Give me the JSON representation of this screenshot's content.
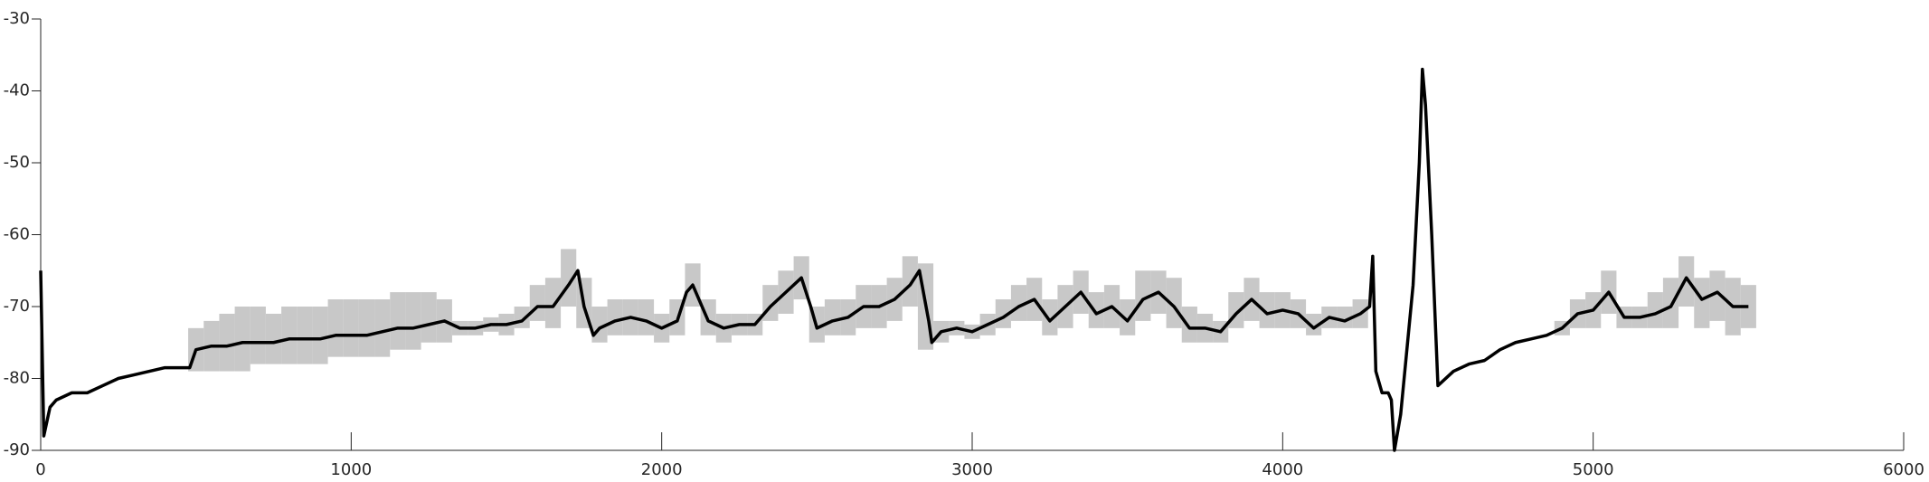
{
  "chart_data": {
    "type": "line",
    "x": [
      0,
      10,
      30,
      50,
      100,
      150,
      200,
      250,
      300,
      350,
      400,
      450,
      480,
      500,
      550,
      600,
      650,
      700,
      750,
      800,
      850,
      900,
      950,
      1000,
      1050,
      1100,
      1150,
      1200,
      1250,
      1300,
      1350,
      1400,
      1450,
      1500,
      1550,
      1600,
      1650,
      1700,
      1730,
      1750,
      1780,
      1800,
      1850,
      1900,
      1950,
      2000,
      2050,
      2080,
      2100,
      2150,
      2200,
      2250,
      2300,
      2350,
      2400,
      2450,
      2480,
      2500,
      2550,
      2600,
      2650,
      2700,
      2750,
      2800,
      2830,
      2860,
      2870,
      2900,
      2950,
      3000,
      3050,
      3100,
      3150,
      3200,
      3250,
      3300,
      3350,
      3400,
      3450,
      3500,
      3550,
      3600,
      3650,
      3700,
      3750,
      3800,
      3850,
      3900,
      3950,
      4000,
      4050,
      4100,
      4150,
      4200,
      4250,
      4280,
      4290,
      4300,
      4320,
      4340,
      4350,
      4360,
      4380,
      4400,
      4420,
      4440,
      4450,
      4460,
      4480,
      4500,
      4550,
      4600,
      4650,
      4700,
      4750,
      4800,
      4850,
      4900,
      4950,
      5000,
      5050,
      5100,
      5150,
      5200,
      5250,
      5300,
      5350,
      5400,
      5450,
      5500
    ],
    "series": [
      {
        "color": "#000000",
        "values": [
          -65,
          -88,
          -84,
          -83,
          -82,
          -82,
          -81,
          -80,
          -79.5,
          -79,
          -78.5,
          -78.5,
          -78.5,
          -76,
          -75.5,
          -75.5,
          -75,
          -75,
          -75,
          -74.5,
          -74.5,
          -74.5,
          -74,
          -74,
          -74,
          -73.5,
          -73,
          -73,
          -72.5,
          -72,
          -73,
          -73,
          -72.5,
          -72.5,
          -72,
          -70,
          -70,
          -67,
          -65,
          -70,
          -74,
          -73,
          -72,
          -71.5,
          -72,
          -73,
          -72,
          -68,
          -67,
          -72,
          -73,
          -72.5,
          -72.5,
          -70,
          -68,
          -66,
          -70,
          -73,
          -72,
          -71.5,
          -70,
          -70,
          -69,
          -67,
          -65,
          -72,
          -75,
          -73.5,
          -73,
          -73.5,
          -72.5,
          -71.5,
          -70,
          -69,
          -72,
          -70,
          -68,
          -71,
          -70,
          -72,
          -69,
          -68,
          -70,
          -73,
          -73,
          -73.5,
          -71,
          -69,
          -71,
          -70.5,
          -71,
          -73,
          -71.5,
          -72,
          -71,
          -70,
          -63,
          -79,
          -82,
          -82,
          -83,
          -90,
          -85,
          -76,
          -67,
          -50,
          -37,
          -42,
          -60,
          -81,
          -79,
          -78,
          -77.5,
          -76,
          -75,
          -74.5,
          -74,
          -73,
          -71,
          -70.5,
          -68,
          -71.5,
          -71.5,
          -71,
          -70,
          -66,
          -69,
          -68,
          -70,
          -70
        ]
      }
    ],
    "band": {
      "color": "#c8c8c8",
      "x": [
        500,
        550,
        600,
        650,
        700,
        750,
        800,
        850,
        900,
        950,
        1000,
        1050,
        1100,
        1150,
        1200,
        1250,
        1300,
        1350,
        1400,
        1450,
        1500,
        1550,
        1600,
        1650,
        1700,
        1750,
        1800,
        1850,
        1900,
        1950,
        2000,
        2050,
        2100,
        2150,
        2200,
        2250,
        2300,
        2350,
        2400,
        2450,
        2500,
        2550,
        2600,
        2650,
        2700,
        2750,
        2800,
        2850,
        2900,
        2950,
        3000,
        3050,
        3100,
        3150,
        3200,
        3250,
        3300,
        3350,
        3400,
        3450,
        3500,
        3550,
        3600,
        3650,
        3700,
        3750,
        3800,
        3850,
        3900,
        3950,
        4000,
        4050,
        4100,
        4150,
        4200,
        4250,
        4900,
        4950,
        5000,
        5050,
        5100,
        5150,
        5200,
        5250,
        5300,
        5350,
        5400,
        5450,
        5500
      ],
      "low": [
        -79,
        -79,
        -79,
        -79,
        -78,
        -78,
        -78,
        -78,
        -78,
        -77,
        -77,
        -77,
        -77,
        -76,
        -76,
        -75,
        -75,
        -74,
        -74,
        -73.5,
        -74,
        -73,
        -72,
        -73,
        -70,
        -73,
        -75,
        -74,
        -74,
        -74,
        -75,
        -74,
        -70,
        -74,
        -75,
        -74,
        -74,
        -72,
        -71,
        -69,
        -75,
        -74,
        -74,
        -73,
        -73,
        -72,
        -70,
        -76,
        -75,
        -74,
        -74.5,
        -74,
        -73,
        -72,
        -72,
        -74,
        -73,
        -71,
        -73,
        -73,
        -74,
        -72,
        -71,
        -73,
        -75,
        -75,
        -75,
        -73,
        -72,
        -73,
        -73,
        -73,
        -74,
        -73,
        -73,
        -73,
        -74,
        -73,
        -73,
        -71,
        -73,
        -73,
        -73,
        -73,
        -70,
        -73,
        -72,
        -74,
        -73
      ],
      "high": [
        -73,
        -72,
        -71,
        -70,
        -70,
        -71,
        -70,
        -70,
        -70,
        -69,
        -69,
        -69,
        -69,
        -68,
        -68,
        -68,
        -69,
        -72,
        -72,
        -71.5,
        -71,
        -70,
        -67,
        -66,
        -62,
        -66,
        -70,
        -69,
        -69,
        -69,
        -71,
        -69,
        -64,
        -69,
        -71,
        -71,
        -71,
        -67,
        -65,
        -63,
        -70,
        -69,
        -69,
        -67,
        -67,
        -66,
        -63,
        -64,
        -72,
        -72,
        -72.5,
        -71,
        -69,
        -67,
        -66,
        -69,
        -67,
        -65,
        -68,
        -67,
        -69,
        -65,
        -65,
        -66,
        -70,
        -71,
        -72,
        -68,
        -66,
        -68,
        -68,
        -69,
        -71,
        -70,
        -70,
        -69,
        -72,
        -69,
        -68,
        -65,
        -70,
        -70,
        -68,
        -66,
        -63,
        -66,
        -65,
        -66,
        -67
      ]
    },
    "xlim": [
      0,
      6000
    ],
    "xticks": [
      0,
      1000,
      2000,
      3000,
      4000,
      5000,
      6000
    ],
    "ylim": [
      -90,
      -30
    ],
    "yticks": [
      -30,
      -40,
      -50,
      -60,
      -70,
      -80,
      -90
    ]
  }
}
